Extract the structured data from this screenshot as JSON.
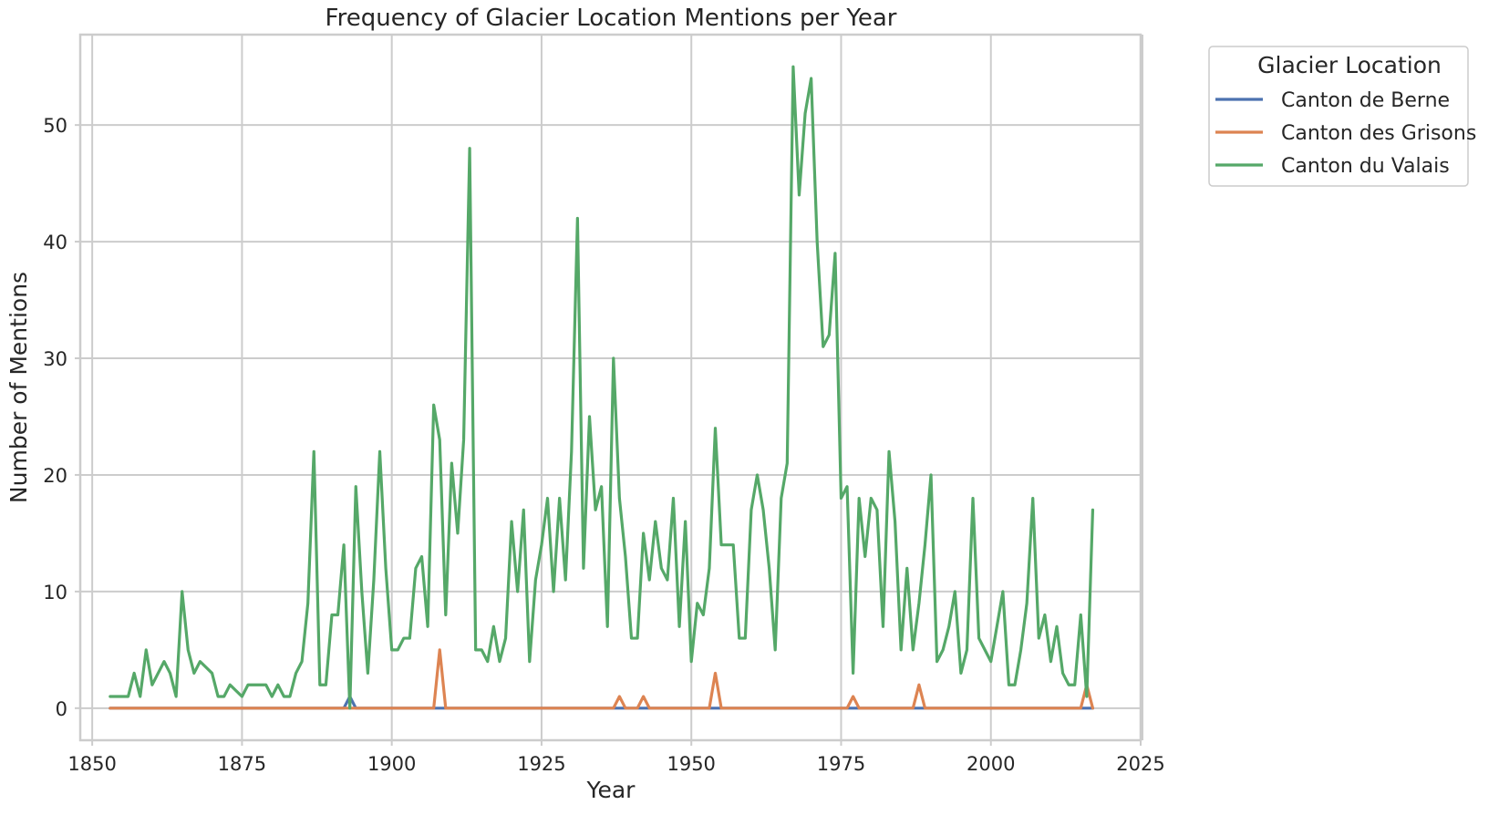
{
  "chart_data": {
    "type": "line",
    "title": "Frequency of Glacier Location Mentions per Year",
    "xlabel": "Year",
    "ylabel": "Number of Mentions",
    "xlim": [
      1848,
      2025
    ],
    "ylim": [
      -2.75,
      57.75
    ],
    "xticks": [
      1850,
      1875,
      1900,
      1925,
      1950,
      1975,
      2000,
      2025
    ],
    "yticks": [
      0,
      10,
      20,
      30,
      40,
      50
    ],
    "grid": true,
    "legend": {
      "title": "Glacier Location",
      "placement": "outside-top-right"
    },
    "x_start": 1853,
    "x_end": 2017,
    "series": [
      {
        "name": "Canton de Berne",
        "color": "#4c72b0",
        "points": [
          [
            1853,
            0
          ],
          [
            1892,
            0
          ],
          [
            1893,
            1
          ],
          [
            1894,
            0
          ],
          [
            2017,
            0
          ]
        ]
      },
      {
        "name": "Canton des Grisons",
        "color": "#dd8452",
        "points": [
          [
            1853,
            0
          ],
          [
            1907,
            0
          ],
          [
            1908,
            5
          ],
          [
            1909,
            0
          ],
          [
            1937,
            0
          ],
          [
            1938,
            1
          ],
          [
            1939,
            0
          ],
          [
            1941,
            0
          ],
          [
            1942,
            1
          ],
          [
            1943,
            0
          ],
          [
            1953,
            0
          ],
          [
            1954,
            3
          ],
          [
            1955,
            0
          ],
          [
            1976,
            0
          ],
          [
            1977,
            1
          ],
          [
            1978,
            0
          ],
          [
            1987,
            0
          ],
          [
            1988,
            2
          ],
          [
            1989,
            0
          ],
          [
            2015,
            0
          ],
          [
            2016,
            2
          ],
          [
            2017,
            0
          ]
        ]
      },
      {
        "name": "Canton du Valais",
        "color": "#55a868",
        "points": [
          [
            1853,
            1
          ],
          [
            1854,
            1
          ],
          [
            1855,
            1
          ],
          [
            1856,
            1
          ],
          [
            1857,
            3
          ],
          [
            1858,
            1
          ],
          [
            1859,
            5
          ],
          [
            1860,
            2
          ],
          [
            1861,
            3
          ],
          [
            1862,
            4
          ],
          [
            1863,
            3
          ],
          [
            1864,
            1
          ],
          [
            1865,
            10
          ],
          [
            1866,
            5
          ],
          [
            1867,
            3
          ],
          [
            1868,
            4
          ],
          [
            1869,
            3.5
          ],
          [
            1870,
            3
          ],
          [
            1871,
            1
          ],
          [
            1872,
            1
          ],
          [
            1873,
            2
          ],
          [
            1874,
            1.5
          ],
          [
            1875,
            1
          ],
          [
            1876,
            2
          ],
          [
            1877,
            2
          ],
          [
            1878,
            2
          ],
          [
            1879,
            2
          ],
          [
            1880,
            1
          ],
          [
            1881,
            2
          ],
          [
            1882,
            1
          ],
          [
            1883,
            1
          ],
          [
            1884,
            3
          ],
          [
            1885,
            4
          ],
          [
            1886,
            9
          ],
          [
            1887,
            22
          ],
          [
            1888,
            2
          ],
          [
            1889,
            2
          ],
          [
            1890,
            8
          ],
          [
            1891,
            8
          ],
          [
            1892,
            14
          ],
          [
            1893,
            0
          ],
          [
            1894,
            19
          ],
          [
            1895,
            10
          ],
          [
            1896,
            3
          ],
          [
            1897,
            11
          ],
          [
            1898,
            22
          ],
          [
            1899,
            12
          ],
          [
            1900,
            5
          ],
          [
            1901,
            5
          ],
          [
            1902,
            6
          ],
          [
            1903,
            6
          ],
          [
            1904,
            12
          ],
          [
            1905,
            13
          ],
          [
            1906,
            7
          ],
          [
            1907,
            26
          ],
          [
            1908,
            23
          ],
          [
            1909,
            8
          ],
          [
            1910,
            21
          ],
          [
            1911,
            15
          ],
          [
            1912,
            23
          ],
          [
            1913,
            48
          ],
          [
            1914,
            5
          ],
          [
            1915,
            5
          ],
          [
            1916,
            4
          ],
          [
            1917,
            7
          ],
          [
            1918,
            4
          ],
          [
            1919,
            6
          ],
          [
            1920,
            16
          ],
          [
            1921,
            10
          ],
          [
            1922,
            17
          ],
          [
            1923,
            4
          ],
          [
            1924,
            11
          ],
          [
            1925,
            14
          ],
          [
            1926,
            18
          ],
          [
            1927,
            10
          ],
          [
            1928,
            18
          ],
          [
            1929,
            11
          ],
          [
            1930,
            22
          ],
          [
            1931,
            42
          ],
          [
            1932,
            12
          ],
          [
            1933,
            25
          ],
          [
            1934,
            17
          ],
          [
            1935,
            19
          ],
          [
            1936,
            7
          ],
          [
            1937,
            30
          ],
          [
            1938,
            18
          ],
          [
            1939,
            13
          ],
          [
            1940,
            6
          ],
          [
            1941,
            6
          ],
          [
            1942,
            15
          ],
          [
            1943,
            11
          ],
          [
            1944,
            16
          ],
          [
            1945,
            12
          ],
          [
            1946,
            11
          ],
          [
            1947,
            18
          ],
          [
            1948,
            7
          ],
          [
            1949,
            16
          ],
          [
            1950,
            4
          ],
          [
            1951,
            9
          ],
          [
            1952,
            8
          ],
          [
            1953,
            12
          ],
          [
            1954,
            24
          ],
          [
            1955,
            14
          ],
          [
            1956,
            14
          ],
          [
            1957,
            14
          ],
          [
            1958,
            6
          ],
          [
            1959,
            6
          ],
          [
            1960,
            17
          ],
          [
            1961,
            20
          ],
          [
            1962,
            17
          ],
          [
            1963,
            12
          ],
          [
            1964,
            5
          ],
          [
            1965,
            18
          ],
          [
            1966,
            21
          ],
          [
            1967,
            55
          ],
          [
            1968,
            44
          ],
          [
            1969,
            51
          ],
          [
            1970,
            54
          ],
          [
            1971,
            40
          ],
          [
            1972,
            31
          ],
          [
            1973,
            32
          ],
          [
            1974,
            39
          ],
          [
            1975,
            18
          ],
          [
            1976,
            19
          ],
          [
            1977,
            3
          ],
          [
            1978,
            18
          ],
          [
            1979,
            13
          ],
          [
            1980,
            18
          ],
          [
            1981,
            17
          ],
          [
            1982,
            7
          ],
          [
            1983,
            22
          ],
          [
            1984,
            16
          ],
          [
            1985,
            5
          ],
          [
            1986,
            12
          ],
          [
            1987,
            5
          ],
          [
            1988,
            9
          ],
          [
            1989,
            14
          ],
          [
            1990,
            20
          ],
          [
            1991,
            4
          ],
          [
            1992,
            5
          ],
          [
            1993,
            7
          ],
          [
            1994,
            10
          ],
          [
            1995,
            3
          ],
          [
            1996,
            5
          ],
          [
            1997,
            18
          ],
          [
            1998,
            6
          ],
          [
            1999,
            5
          ],
          [
            2000,
            4
          ],
          [
            2001,
            7
          ],
          [
            2002,
            10
          ],
          [
            2003,
            2
          ],
          [
            2004,
            2
          ],
          [
            2005,
            5
          ],
          [
            2006,
            9
          ],
          [
            2007,
            18
          ],
          [
            2008,
            6
          ],
          [
            2009,
            8
          ],
          [
            2010,
            4
          ],
          [
            2011,
            7
          ],
          [
            2012,
            3
          ],
          [
            2013,
            2
          ],
          [
            2014,
            2
          ],
          [
            2015,
            8
          ],
          [
            2016,
            1
          ],
          [
            2017,
            17
          ]
        ]
      }
    ]
  }
}
